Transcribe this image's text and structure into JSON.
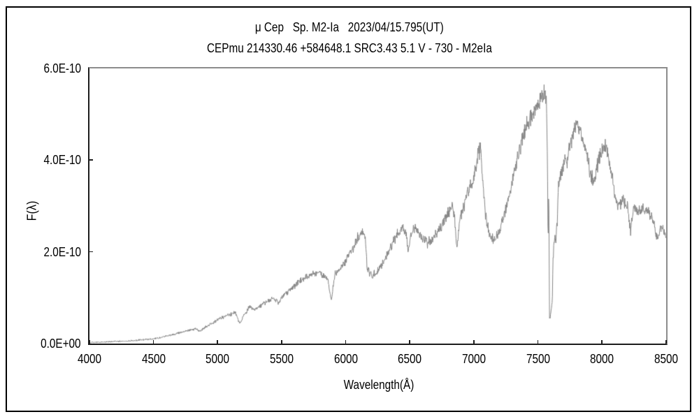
{
  "window": {
    "background": "#ffffff",
    "border_color": "#000000"
  },
  "chart_data": {
    "type": "line",
    "title_line1": "μ Cep   Sp. M2-Ia   2023/04/15.795(UT)",
    "title_line2": "CEPmu 214330.46 +584648.1 SRC3.43 5.1 V - 730 - M2eIa",
    "xlabel": "Wavelength(Å)",
    "ylabel": "F(λ)",
    "xlim": [
      4000,
      8500
    ],
    "ylim_e10": [
      0,
      6
    ],
    "x_ticks": [
      4000,
      4500,
      5000,
      5500,
      6000,
      6500,
      7000,
      7500,
      8000,
      8500
    ],
    "y_tick_labels_top_to_bottom": [
      "6.0E-10",
      "4.0E-10",
      "2.0E-10",
      "0.0E+00"
    ],
    "y_tick_values_e10": [
      6,
      4,
      2,
      0
    ],
    "grid": false,
    "legend_position": "none",
    "line_color": "#848484",
    "axis_color": "#1c1c1c",
    "frame_color": "#8c8c8c",
    "series": [
      {
        "name": "spectrum",
        "anchors_wavelength_A_flux_e10": [
          [
            4000,
            0.02
          ],
          [
            4060,
            0.03
          ],
          [
            4120,
            0.035
          ],
          [
            4180,
            0.045
          ],
          [
            4240,
            0.05
          ],
          [
            4300,
            0.06
          ],
          [
            4360,
            0.07
          ],
          [
            4420,
            0.085
          ],
          [
            4480,
            0.1
          ],
          [
            4540,
            0.12
          ],
          [
            4600,
            0.16
          ],
          [
            4660,
            0.2
          ],
          [
            4720,
            0.25
          ],
          [
            4780,
            0.3
          ],
          [
            4830,
            0.32
          ],
          [
            4865,
            0.27
          ],
          [
            4900,
            0.35
          ],
          [
            4950,
            0.43
          ],
          [
            5000,
            0.52
          ],
          [
            5050,
            0.58
          ],
          [
            5100,
            0.63
          ],
          [
            5140,
            0.68
          ],
          [
            5172,
            0.42
          ],
          [
            5205,
            0.63
          ],
          [
            5250,
            0.8
          ],
          [
            5285,
            0.72
          ],
          [
            5320,
            0.78
          ],
          [
            5360,
            0.88
          ],
          [
            5400,
            0.93
          ],
          [
            5440,
            0.99
          ],
          [
            5472,
            0.89
          ],
          [
            5505,
            1.03
          ],
          [
            5540,
            1.12
          ],
          [
            5580,
            1.22
          ],
          [
            5620,
            1.31
          ],
          [
            5660,
            1.39
          ],
          [
            5700,
            1.45
          ],
          [
            5740,
            1.51
          ],
          [
            5780,
            1.56
          ],
          [
            5820,
            1.49
          ],
          [
            5858,
            1.42
          ],
          [
            5888,
            0.95
          ],
          [
            5915,
            1.52
          ],
          [
            5955,
            1.64
          ],
          [
            6000,
            1.8
          ],
          [
            6048,
            2.05
          ],
          [
            6090,
            2.3
          ],
          [
            6128,
            2.42
          ],
          [
            6152,
            2.36
          ],
          [
            6166,
            1.64
          ],
          [
            6200,
            1.48
          ],
          [
            6240,
            1.56
          ],
          [
            6280,
            1.7
          ],
          [
            6320,
            1.92
          ],
          [
            6360,
            2.16
          ],
          [
            6400,
            2.36
          ],
          [
            6442,
            2.54
          ],
          [
            6470,
            2.44
          ],
          [
            6488,
            1.96
          ],
          [
            6508,
            2.4
          ],
          [
            6540,
            2.52
          ],
          [
            6565,
            2.44
          ],
          [
            6600,
            2.26
          ],
          [
            6640,
            2.18
          ],
          [
            6680,
            2.3
          ],
          [
            6720,
            2.46
          ],
          [
            6762,
            2.62
          ],
          [
            6800,
            2.86
          ],
          [
            6830,
            3.02
          ],
          [
            6848,
            2.78
          ],
          [
            6867,
            2.06
          ],
          [
            6892,
            2.78
          ],
          [
            6920,
            2.96
          ],
          [
            6950,
            3.36
          ],
          [
            6980,
            3.42
          ],
          [
            7012,
            3.82
          ],
          [
            7035,
            4.12
          ],
          [
            7052,
            4.28
          ],
          [
            7068,
            3.58
          ],
          [
            7085,
            2.92
          ],
          [
            7105,
            2.56
          ],
          [
            7132,
            2.32
          ],
          [
            7162,
            2.26
          ],
          [
            7192,
            2.42
          ],
          [
            7225,
            2.68
          ],
          [
            7262,
            3.08
          ],
          [
            7300,
            3.52
          ],
          [
            7340,
            4.02
          ],
          [
            7380,
            4.46
          ],
          [
            7420,
            4.82
          ],
          [
            7460,
            5.06
          ],
          [
            7500,
            5.26
          ],
          [
            7532,
            5.4
          ],
          [
            7552,
            5.43
          ],
          [
            7566,
            5.31
          ],
          [
            7573,
            4.3
          ],
          [
            7579,
            2.12
          ],
          [
            7584,
            3.45
          ],
          [
            7590,
            0.56
          ],
          [
            7598,
            0.62
          ],
          [
            7606,
            0.78
          ],
          [
            7612,
            0.96
          ],
          [
            7617,
            1.82
          ],
          [
            7623,
            2.1
          ],
          [
            7631,
            2.36
          ],
          [
            7639,
            2.2
          ],
          [
            7649,
            2.62
          ],
          [
            7659,
            3.42
          ],
          [
            7672,
            3.56
          ],
          [
            7692,
            3.8
          ],
          [
            7712,
            4.1
          ],
          [
            7726,
            3.86
          ],
          [
            7742,
            4.22
          ],
          [
            7762,
            4.46
          ],
          [
            7785,
            4.7
          ],
          [
            7808,
            4.8
          ],
          [
            7842,
            4.5
          ],
          [
            7872,
            4.2
          ],
          [
            7902,
            3.8
          ],
          [
            7935,
            3.5
          ],
          [
            7966,
            3.9
          ],
          [
            8000,
            4.25
          ],
          [
            8026,
            4.35
          ],
          [
            8062,
            3.9
          ],
          [
            8100,
            3.22
          ],
          [
            8130,
            3.0
          ],
          [
            8162,
            3.1
          ],
          [
            8200,
            2.95
          ],
          [
            8222,
            2.45
          ],
          [
            8246,
            3.0
          ],
          [
            8282,
            2.9
          ],
          [
            8320,
            2.95
          ],
          [
            8360,
            2.85
          ],
          [
            8400,
            2.7
          ],
          [
            8434,
            2.25
          ],
          [
            8456,
            2.6
          ],
          [
            8478,
            2.45
          ],
          [
            8500,
            2.35
          ]
        ]
      }
    ],
    "noise": {
      "seed": 123456789,
      "base_e10": 0.018,
      "frac": 0.05,
      "sample_step_A": 2.5
    }
  }
}
